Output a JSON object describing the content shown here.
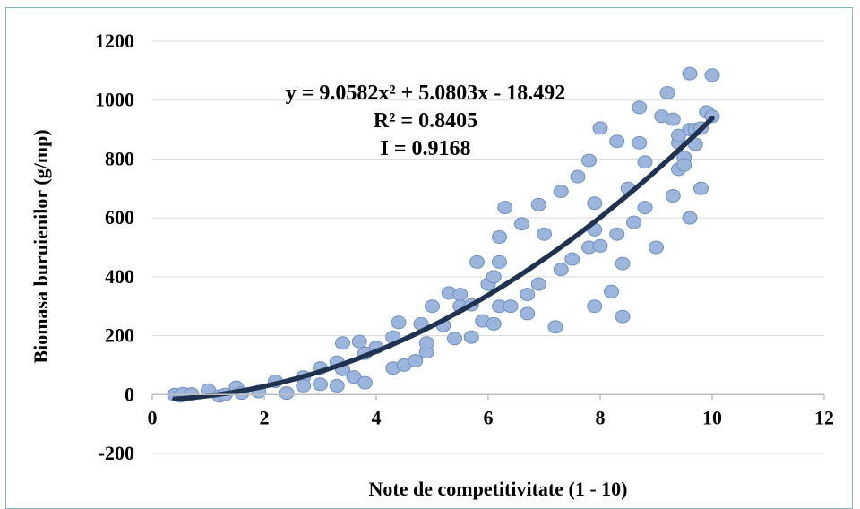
{
  "chart_data": {
    "type": "scatter",
    "xlabel": "Note de competitivitate (1 - 10)",
    "ylabel": "Biomasa buruienilor (g/mp)",
    "xlim": [
      0,
      12
    ],
    "ylim": [
      -200,
      1200
    ],
    "xticks": [
      "0",
      "2",
      "4",
      "6",
      "8",
      "10",
      "12"
    ],
    "yticks": [
      "1200",
      "1000",
      "800",
      "600",
      "400",
      "200",
      "0",
      "-200"
    ],
    "grid": "horizontal",
    "legend": "none",
    "annotations": [
      "y = 9.0582x² + 5.0803x - 18.492",
      "R² = 0.8405",
      "I  = 0.9168"
    ],
    "trendline": {
      "type": "polynomial",
      "a": 9.0582,
      "b": 5.0803,
      "c": -18.492,
      "x_range": [
        0.4,
        10
      ]
    },
    "colors": {
      "marker_fill": "#9bb5dc",
      "marker_stroke": "#6f8fbf",
      "trendline": "#1f3350",
      "grid": "#d9d9d9",
      "frame": "#7fb3c8"
    },
    "points": [
      [
        0.4,
        0
      ],
      [
        0.5,
        -5
      ],
      [
        0.55,
        3
      ],
      [
        0.7,
        2
      ],
      [
        1.0,
        15
      ],
      [
        1.2,
        -5
      ],
      [
        1.3,
        0
      ],
      [
        1.5,
        25
      ],
      [
        1.6,
        5
      ],
      [
        1.9,
        10
      ],
      [
        2.2,
        45
      ],
      [
        2.4,
        5
      ],
      [
        2.7,
        60
      ],
      [
        2.7,
        30
      ],
      [
        3.0,
        90
      ],
      [
        3.0,
        35
      ],
      [
        3.3,
        110
      ],
      [
        3.3,
        30
      ],
      [
        3.4,
        175
      ],
      [
        3.4,
        85
      ],
      [
        3.6,
        60
      ],
      [
        3.7,
        180
      ],
      [
        3.8,
        40
      ],
      [
        3.8,
        140
      ],
      [
        4.0,
        160
      ],
      [
        4.3,
        90
      ],
      [
        4.3,
        195
      ],
      [
        4.4,
        245
      ],
      [
        4.5,
        100
      ],
      [
        4.7,
        115
      ],
      [
        4.8,
        240
      ],
      [
        4.9,
        145
      ],
      [
        4.9,
        175
      ],
      [
        5.0,
        300
      ],
      [
        5.2,
        235
      ],
      [
        5.3,
        345
      ],
      [
        5.4,
        190
      ],
      [
        5.5,
        340
      ],
      [
        5.5,
        300
      ],
      [
        5.7,
        195
      ],
      [
        5.7,
        305
      ],
      [
        5.8,
        450
      ],
      [
        5.9,
        250
      ],
      [
        6.0,
        375
      ],
      [
        6.1,
        240
      ],
      [
        6.1,
        400
      ],
      [
        6.2,
        300
      ],
      [
        6.2,
        535
      ],
      [
        6.2,
        450
      ],
      [
        6.3,
        635
      ],
      [
        6.4,
        300
      ],
      [
        6.6,
        580
      ],
      [
        6.7,
        340
      ],
      [
        6.7,
        275
      ],
      [
        6.9,
        645
      ],
      [
        6.9,
        375
      ],
      [
        7.0,
        545
      ],
      [
        7.2,
        230
      ],
      [
        7.3,
        690
      ],
      [
        7.3,
        425
      ],
      [
        7.5,
        460
      ],
      [
        7.6,
        740
      ],
      [
        7.8,
        795
      ],
      [
        7.8,
        500
      ],
      [
        7.9,
        650
      ],
      [
        7.9,
        300
      ],
      [
        7.9,
        560
      ],
      [
        8.0,
        905
      ],
      [
        8.0,
        505
      ],
      [
        8.2,
        350
      ],
      [
        8.3,
        860
      ],
      [
        8.3,
        545
      ],
      [
        8.4,
        445
      ],
      [
        8.4,
        265
      ],
      [
        8.5,
        700
      ],
      [
        8.6,
        585
      ],
      [
        8.7,
        975
      ],
      [
        8.7,
        855
      ],
      [
        8.8,
        790
      ],
      [
        8.8,
        635
      ],
      [
        9.0,
        500
      ],
      [
        9.1,
        945
      ],
      [
        9.2,
        1025
      ],
      [
        9.3,
        935
      ],
      [
        9.3,
        675
      ],
      [
        9.4,
        765
      ],
      [
        9.4,
        855
      ],
      [
        9.4,
        880
      ],
      [
        9.5,
        805
      ],
      [
        9.5,
        780
      ],
      [
        9.6,
        1090
      ],
      [
        9.6,
        900
      ],
      [
        9.6,
        600
      ],
      [
        9.7,
        900
      ],
      [
        9.7,
        850
      ],
      [
        9.8,
        700
      ],
      [
        9.8,
        905
      ],
      [
        9.9,
        960
      ],
      [
        10.0,
        1085
      ],
      [
        10.0,
        945
      ]
    ]
  }
}
